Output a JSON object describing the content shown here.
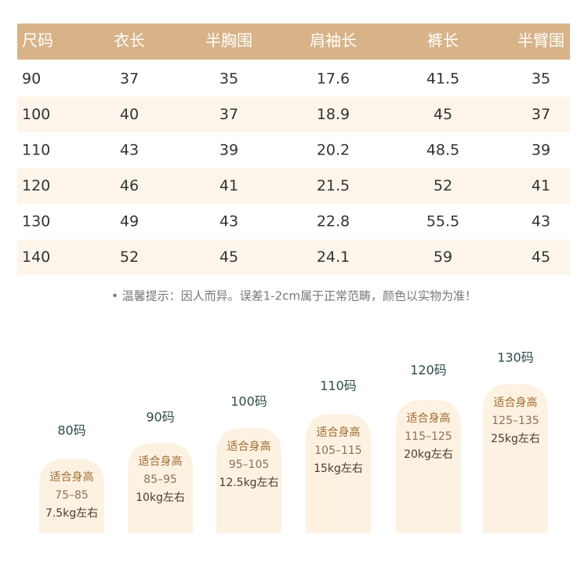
{
  "table": {
    "header": [
      "尺码",
      "衣长",
      "半胸围",
      "肩袖长",
      "裤长",
      "半臂围"
    ],
    "rows": [
      [
        "90",
        "37",
        "35",
        "17.6",
        "41.5",
        "35"
      ],
      [
        "100",
        "40",
        "37",
        "18.9",
        "45",
        "37"
      ],
      [
        "110",
        "43",
        "39",
        "20.2",
        "48.5",
        "39"
      ],
      [
        "120",
        "46",
        "41",
        "21.5",
        "52",
        "41"
      ],
      [
        "130",
        "49",
        "43",
        "22.8",
        "55.5",
        "43"
      ],
      [
        "140",
        "52",
        "45",
        "24.1",
        "59",
        "45"
      ]
    ]
  },
  "note": "• 温馨提示：因人而异。误差1-2cm属于正常范畴，颜色以实物为准！",
  "cards": [
    {
      "label": "80码",
      "lines": [
        "适合身高",
        "75–85",
        "7.5kg左右"
      ]
    },
    {
      "label": "90码",
      "lines": [
        "适合身高",
        "85–95",
        "10kg左右"
      ]
    },
    {
      "label": "100码",
      "lines": [
        "适合身高",
        "95–105",
        "12.5kg左右"
      ]
    },
    {
      "label": "110码",
      "lines": [
        "适合身高",
        "105–115",
        "15kg左右"
      ]
    },
    {
      "label": "120码",
      "lines": [
        "适合身高",
        "115–125",
        "20kg左右"
      ]
    },
    {
      "label": "130码",
      "lines": [
        "适合身高",
        "125–135",
        "25kg左右"
      ]
    }
  ]
}
